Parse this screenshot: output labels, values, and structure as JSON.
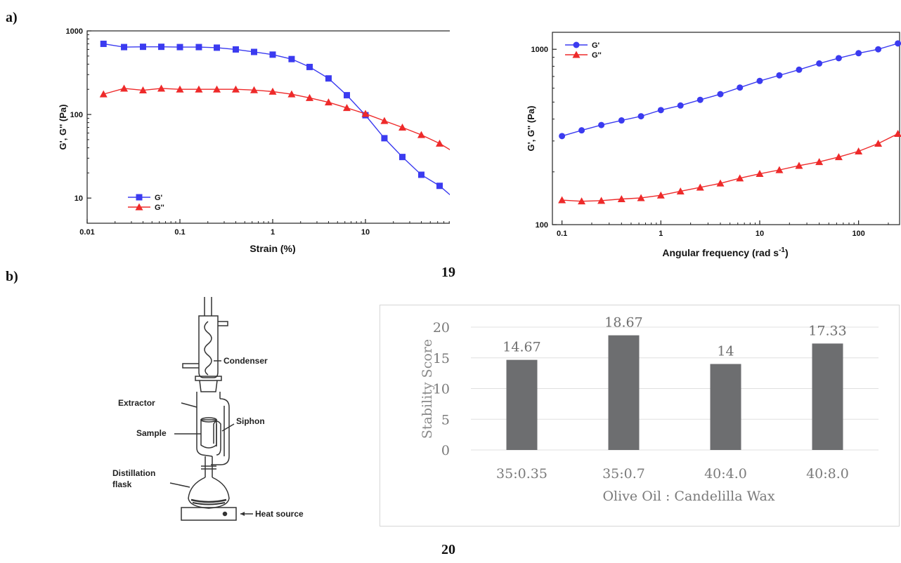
{
  "labels": {
    "panel_a": "a)",
    "panel_b": "b)",
    "figure_19": "19",
    "figure_20": "20"
  },
  "chart_data": [
    {
      "type": "line",
      "xscale": "log",
      "yscale": "log",
      "xlabel": "Strain (%)",
      "ylabel": "G', G'' (Pa)",
      "xlim": [
        0.01,
        100
      ],
      "ylim": [
        5,
        1000
      ],
      "xticks": [
        "0.01",
        "0.1",
        "1",
        "10",
        "100"
      ],
      "yticks": [
        "1000",
        "100",
        "10"
      ],
      "legend": "bottom-left",
      "series": [
        {
          "name": "G'",
          "color": "#3b3bf0",
          "marker": "square",
          "x": [
            0.015,
            0.025,
            0.04,
            0.063,
            0.1,
            0.16,
            0.25,
            0.4,
            0.63,
            1.0,
            1.6,
            2.5,
            4.0,
            6.3,
            10,
            16,
            25,
            40,
            63,
            100
          ],
          "y": [
            700,
            640,
            645,
            645,
            640,
            640,
            630,
            600,
            560,
            520,
            460,
            370,
            270,
            170,
            98,
            52,
            31,
            19,
            14,
            9
          ]
        },
        {
          "name": "G''",
          "color": "#ee2a2a",
          "marker": "triangle",
          "x": [
            0.015,
            0.025,
            0.04,
            0.063,
            0.1,
            0.16,
            0.25,
            0.4,
            0.63,
            1.0,
            1.6,
            2.5,
            4.0,
            6.3,
            10,
            16,
            25,
            40,
            63,
            100
          ],
          "y": [
            175,
            205,
            195,
            205,
            200,
            200,
            200,
            200,
            196,
            188,
            175,
            158,
            140,
            120,
            102,
            84,
            70,
            57,
            45,
            33
          ]
        }
      ]
    },
    {
      "type": "line",
      "xscale": "log",
      "yscale": "log",
      "xlabel": "Angular frequency (rad s",
      "xlabel_sup": "-1",
      "xlabel_end": ")",
      "ylabel": "G', G'' (Pa)",
      "xlim": [
        0.08,
        260
      ],
      "ylim": [
        100,
        1250
      ],
      "xticks": [
        "0.1",
        "1",
        "10",
        "100"
      ],
      "yticks": [
        "1000",
        "100"
      ],
      "legend": "top-left",
      "series": [
        {
          "name": "G'",
          "color": "#3b3bf0",
          "marker": "circle",
          "x": [
            0.1,
            0.158,
            0.25,
            0.4,
            0.63,
            1.0,
            1.58,
            2.5,
            4.0,
            6.3,
            10,
            15.8,
            25,
            40,
            63,
            100,
            158,
            250
          ],
          "y": [
            320,
            345,
            370,
            393,
            415,
            450,
            478,
            515,
            555,
            605,
            660,
            710,
            765,
            830,
            890,
            950,
            1000,
            1080
          ]
        },
        {
          "name": "G''",
          "color": "#ee2a2a",
          "marker": "triangle",
          "x": [
            0.1,
            0.158,
            0.25,
            0.4,
            0.63,
            1.0,
            1.58,
            2.5,
            4.0,
            6.3,
            10,
            15.8,
            25,
            40,
            63,
            100,
            158,
            250
          ],
          "y": [
            138,
            136,
            137,
            140,
            142,
            147,
            155,
            163,
            172,
            184,
            195,
            205,
            217,
            228,
            243,
            262,
            290,
            330
          ]
        }
      ]
    },
    {
      "type": "bar",
      "xlabel": "Olive Oil : Candelilla Wax",
      "ylabel": "Stability Score",
      "ylim": [
        0,
        20
      ],
      "yticks": [
        "0",
        "5",
        "10",
        "15",
        "20"
      ],
      "categories": [
        "35:0.35",
        "35:0.7",
        "40:4.0",
        "40:8.0"
      ],
      "values": [
        14.67,
        18.67,
        14,
        17.33
      ],
      "data_labels": [
        "14.67",
        "18.67",
        "14",
        "17.33"
      ],
      "bar_color": "#6d6e70",
      "grid": true
    }
  ],
  "diagram": {
    "labels": [
      "Condenser",
      "Extractor",
      "Siphon",
      "Sample",
      "Distillation",
      "flask",
      "Heat source"
    ]
  }
}
